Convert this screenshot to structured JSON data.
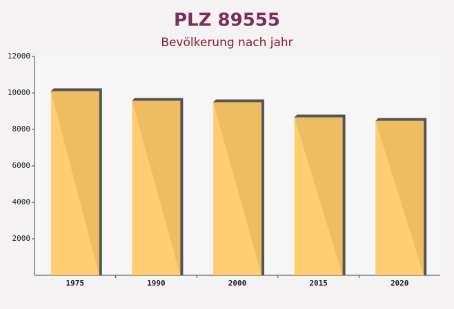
{
  "chart_data": {
    "type": "bar",
    "title": "PLZ 89555",
    "subtitle": "Bevölkerung nach jahr",
    "categories": [
      "1975",
      "1990",
      "2000",
      "2015",
      "2020"
    ],
    "values": [
      10100,
      9570,
      9490,
      8660,
      8470
    ],
    "color": "#ffc964",
    "ylim": [
      0,
      12000
    ],
    "yticks": [
      2000,
      4000,
      6000,
      8000,
      10000,
      12000
    ],
    "grid": false
  }
}
